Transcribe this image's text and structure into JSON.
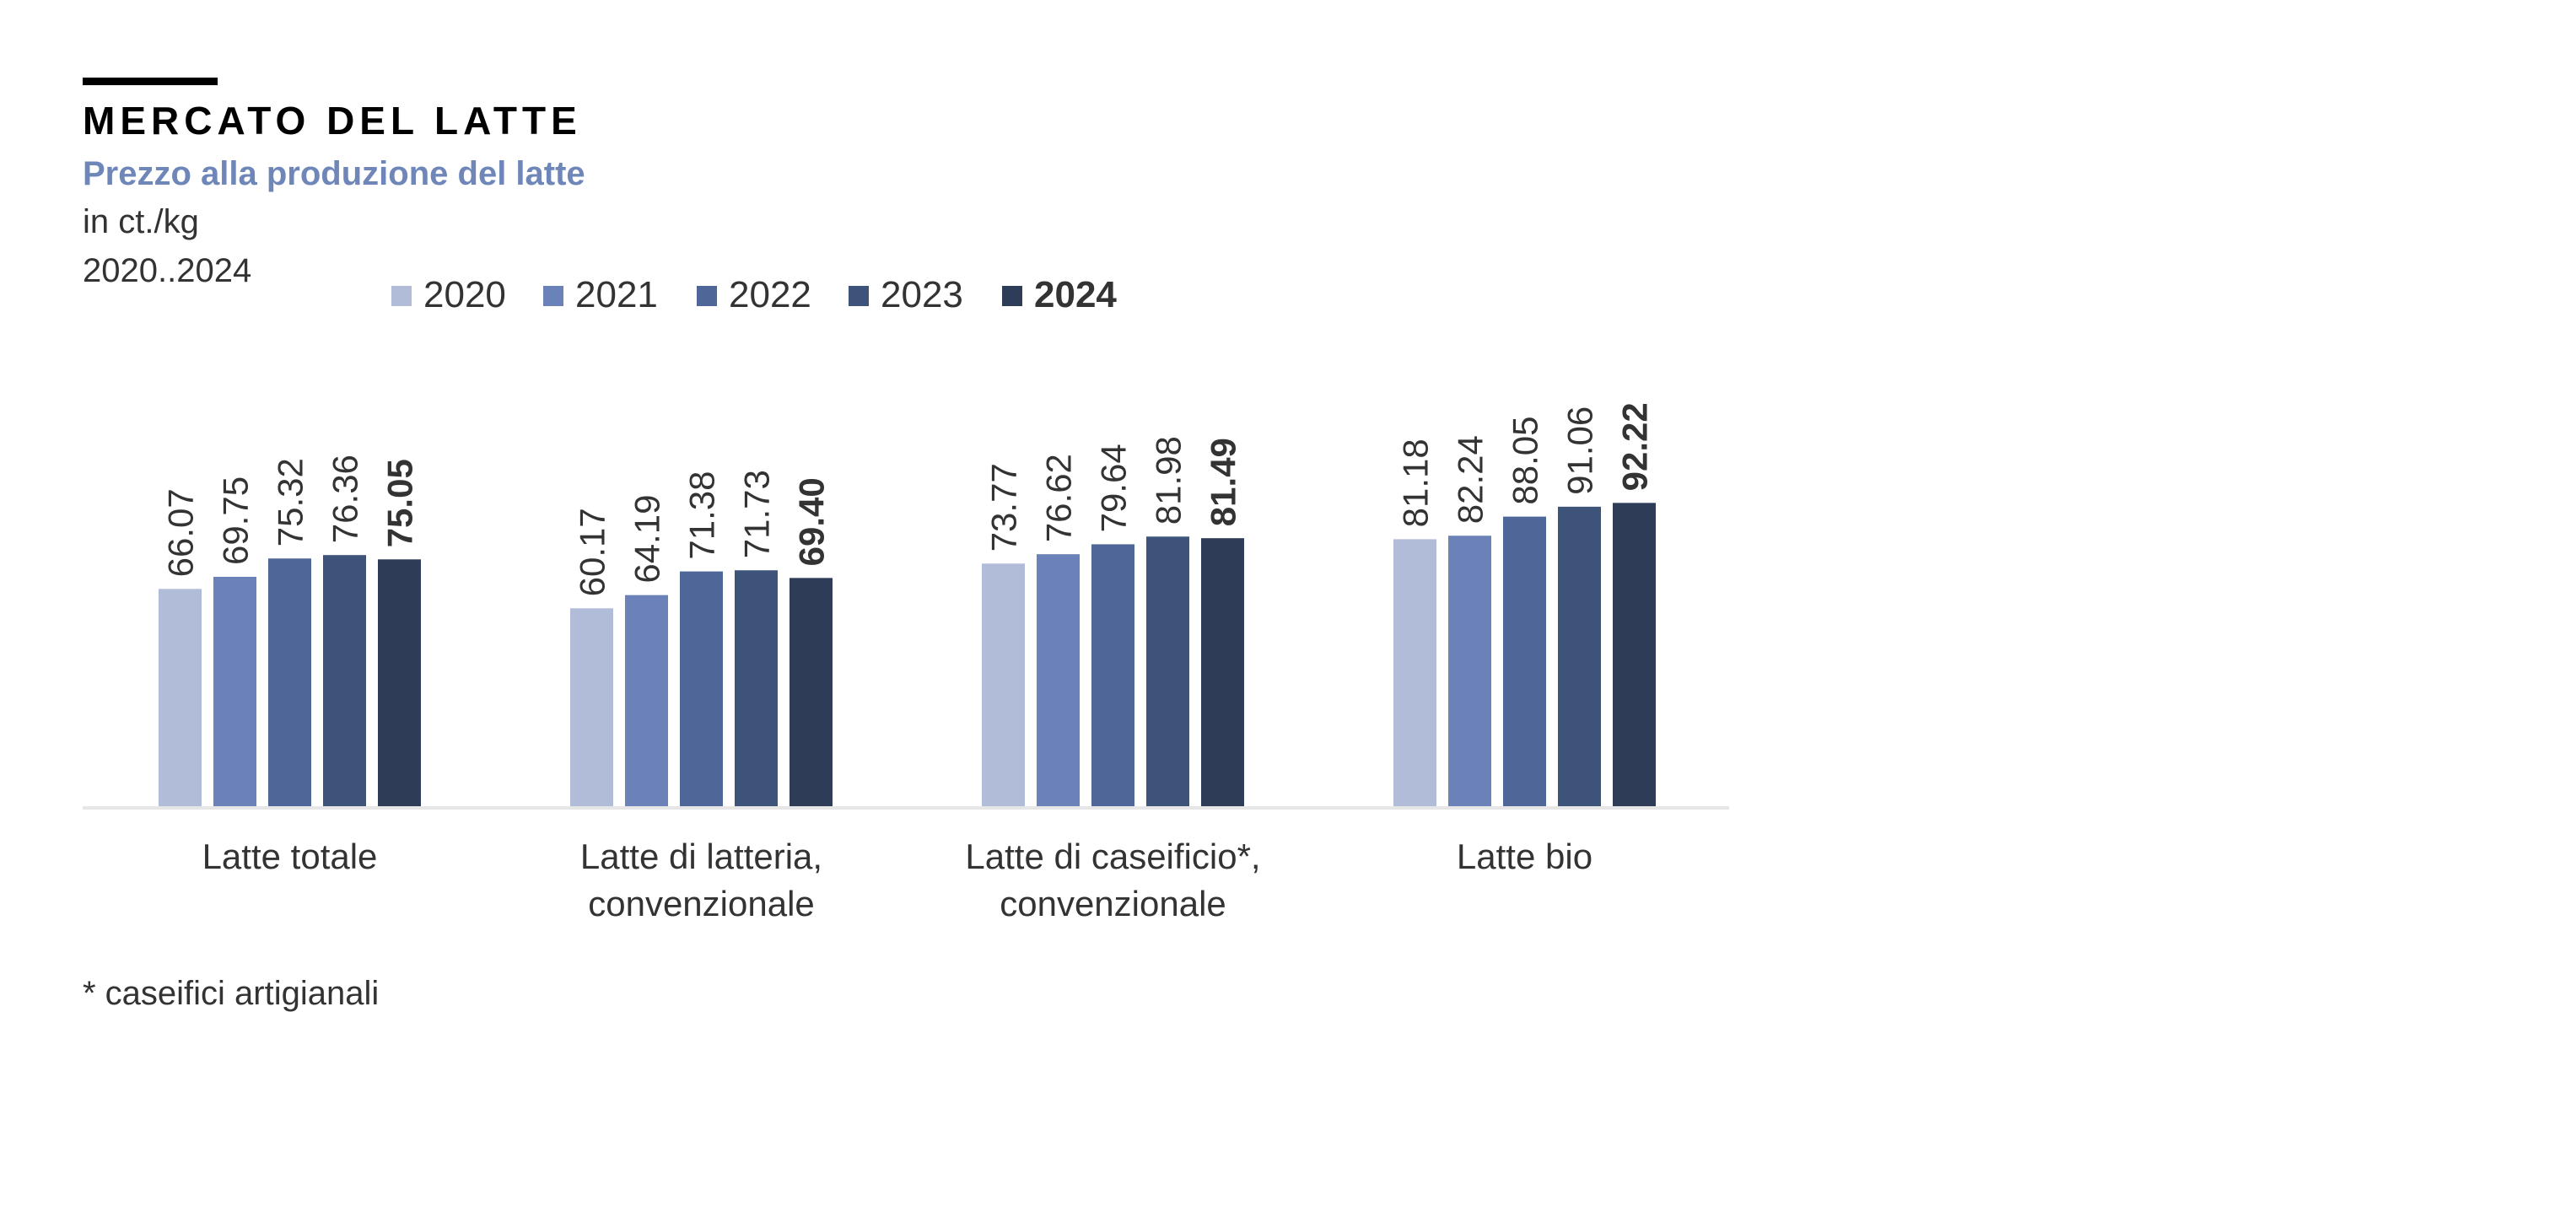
{
  "header": {
    "title": "MERCATO DEL LATTE",
    "subtitle": "Prezzo alla produzione del latte",
    "unit": "in ct./kg",
    "period": "2020..2024"
  },
  "footnote": "* caseifici artigianali",
  "colors": {
    "subtitle": "#6f86b9",
    "text": "#333333",
    "axis": "#e6e6e6",
    "series": [
      "#b1bcd8",
      "#6a82b7",
      "#4f6699",
      "#3e5379",
      "#2e3c57"
    ]
  },
  "chart_data": {
    "type": "bar",
    "title": "",
    "xlabel": "",
    "ylabel": "",
    "ylim": [
      0,
      100
    ],
    "grid": false,
    "legend_placement": "top",
    "categories": [
      [
        "Latte totale"
      ],
      [
        "Latte di latteria,",
        "convenzionale"
      ],
      [
        "Latte di caseificio*,",
        "convenzionale"
      ],
      [
        "Latte bio"
      ]
    ],
    "series": [
      {
        "name": "2020",
        "values": [
          66.07,
          60.17,
          73.77,
          81.18
        ],
        "labels": [
          "66.07",
          "60.17",
          "73.77",
          "81.18"
        ]
      },
      {
        "name": "2021",
        "values": [
          69.75,
          64.19,
          76.62,
          82.24
        ],
        "labels": [
          "69.75",
          "64.19",
          "76.62",
          "82.24"
        ]
      },
      {
        "name": "2022",
        "values": [
          75.32,
          71.38,
          79.64,
          88.05
        ],
        "labels": [
          "75.32",
          "71.38",
          "79.64",
          "88.05"
        ]
      },
      {
        "name": "2023",
        "values": [
          76.36,
          71.73,
          81.98,
          91.06
        ],
        "labels": [
          "76.36",
          "71.73",
          "81.98",
          "91.06"
        ]
      },
      {
        "name": "2024",
        "values": [
          75.05,
          69.4,
          81.49,
          92.22
        ],
        "labels": [
          "75.05",
          "69.40",
          "81.49",
          "92.22"
        ],
        "bold": true
      }
    ]
  }
}
